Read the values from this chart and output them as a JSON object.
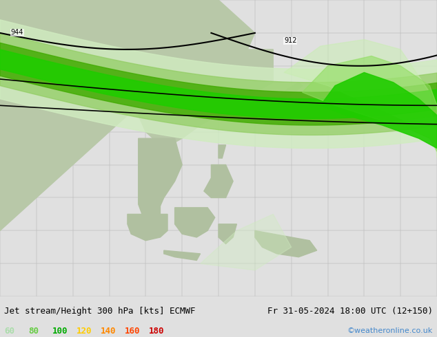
{
  "title_left": "Jet stream/Height 300 hPa [kts] ECMWF",
  "title_right": "Fr 31-05-2024 18:00 UTC (12+150)",
  "watermark": "©weatheronline.co.uk",
  "legend_values": [
    "60",
    "80",
    "100",
    "120",
    "140",
    "160",
    "180"
  ],
  "legend_colors": [
    "#aaddaa",
    "#66cc44",
    "#00aa00",
    "#ffcc00",
    "#ff8800",
    "#ff4400",
    "#cc0000"
  ],
  "background_color": "#e8e8e8",
  "map_bg": "#f0f0f0",
  "contour_labels": [
    "944",
    "912"
  ],
  "fig_width": 6.34,
  "fig_height": 4.9,
  "dpi": 100
}
